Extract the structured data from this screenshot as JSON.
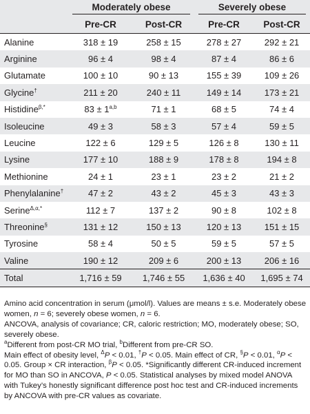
{
  "header": {
    "groups": [
      "Moderately obese",
      "Severely obese"
    ],
    "columns": [
      "Pre-CR",
      "Post-CR",
      "Pre-CR",
      "Post-CR"
    ]
  },
  "rows": [
    {
      "name": "Alanine",
      "sup": "",
      "mo_pre": "318 ± 19",
      "mo_pre_sup": "",
      "mo_post": "258 ± 15",
      "so_pre": "278 ± 27",
      "so_post": "292 ± 21"
    },
    {
      "name": "Arginine",
      "sup": "",
      "mo_pre": "96 ± 4",
      "mo_pre_sup": "",
      "mo_post": "98 ± 4",
      "so_pre": "87 ± 4",
      "so_post": "86 ± 6"
    },
    {
      "name": "Glutamate",
      "sup": "",
      "mo_pre": "100 ± 10",
      "mo_pre_sup": "",
      "mo_post": "90 ± 13",
      "so_pre": "155 ± 39",
      "so_post": "109 ± 26"
    },
    {
      "name": "Glycine",
      "sup": "†",
      "mo_pre": "211 ± 20",
      "mo_pre_sup": "",
      "mo_post": "240 ± 11",
      "so_pre": "149 ± 14",
      "so_post": "173 ± 21"
    },
    {
      "name": "Histidine",
      "sup": "β,*",
      "mo_pre": "83 ± 1",
      "mo_pre_sup": "a,b",
      "mo_post": "71 ± 1",
      "so_pre": "68 ± 5",
      "so_post": "74 ± 4"
    },
    {
      "name": "Isoleucine",
      "sup": "",
      "mo_pre": "49 ± 3",
      "mo_pre_sup": "",
      "mo_post": "58 ± 3",
      "so_pre": "57 ± 4",
      "so_post": "59 ± 5"
    },
    {
      "name": "Leucine",
      "sup": "",
      "mo_pre": "122 ± 6",
      "mo_pre_sup": "",
      "mo_post": "129 ± 5",
      "so_pre": "126 ± 8",
      "so_post": "130 ± 11"
    },
    {
      "name": "Lysine",
      "sup": "",
      "mo_pre": "177 ± 10",
      "mo_pre_sup": "",
      "mo_post": "188 ± 9",
      "so_pre": "178 ± 8",
      "so_post": "194 ± 8"
    },
    {
      "name": "Methionine",
      "sup": "",
      "mo_pre": "24 ± 1",
      "mo_pre_sup": "",
      "mo_post": "23 ± 1",
      "so_pre": "23 ± 2",
      "so_post": "21 ± 2"
    },
    {
      "name": "Phenylalanine",
      "sup": "†",
      "mo_pre": "47 ± 2",
      "mo_pre_sup": "",
      "mo_post": "43 ± 2",
      "so_pre": "45 ± 3",
      "so_post": "43 ± 3"
    },
    {
      "name": "Serine",
      "sup": "Δ,α,*",
      "mo_pre": "112 ± 7",
      "mo_pre_sup": "",
      "mo_post": "137 ± 2",
      "so_pre": "90 ± 8",
      "so_post": "102 ± 8"
    },
    {
      "name": "Threonine",
      "sup": "§",
      "mo_pre": "131 ± 12",
      "mo_pre_sup": "",
      "mo_post": "150 ± 13",
      "so_pre": "120 ± 13",
      "so_post": "151 ± 15"
    },
    {
      "name": "Tyrosine",
      "sup": "",
      "mo_pre": "58 ± 4",
      "mo_pre_sup": "",
      "mo_post": "50 ± 5",
      "so_pre": "59 ± 5",
      "so_post": "57 ± 5"
    },
    {
      "name": "Valine",
      "sup": "",
      "mo_pre": "190 ± 12",
      "mo_pre_sup": "",
      "mo_post": "209 ± 6",
      "so_pre": "200 ± 13",
      "so_post": "206 ± 16"
    }
  ],
  "total": {
    "name": "Total",
    "mo_pre": "1,716 ± 59",
    "mo_post": "1,746 ± 55",
    "so_pre": "1,636 ± 40",
    "so_post": "1,695 ± 74"
  },
  "footnotes": {
    "p1": {
      "a": "Amino acid concentration in serum (μmol/l). Values are means ± s.e. Moderately obese women, ",
      "n1": "n",
      "b": " = 6; severely obese women, ",
      "n2": "n",
      "c": " = 6."
    },
    "p2": "ANCOVA, analysis of covariance; CR, caloric restriction; MO, moderately obese; SO, severely obese.",
    "p3": {
      "sa": "a",
      "a": "Different from post-CR MO trial, ",
      "sb": "b",
      "b": "Different from pre-CR SO."
    },
    "p4": {
      "a": "Main effect of obesity level, ",
      "s1": "Δ",
      "p1": "P",
      "a2": " < 0.01, ",
      "s2": "†",
      "p2": "P",
      "a3": " < 0.05. Main effect of CR, ",
      "s3": "§",
      "p3": "P",
      "a4": " < 0.01, ",
      "s4": "α",
      "p4": "P",
      "a5": " < 0.05. Group × CR interaction, ",
      "s5": "β",
      "p5": "P",
      "a6": " < 0.05. *Significantly different CR-induced increment for MO than SO in ANCOVA, ",
      "p6": "P",
      "a7": " < 0.05. Statistical analyses by mixed model ANOVA with Tukey’s honestly significant difference post hoc test and CR-induced increments by ANCOVA with pre-CR values as covariate."
    }
  }
}
